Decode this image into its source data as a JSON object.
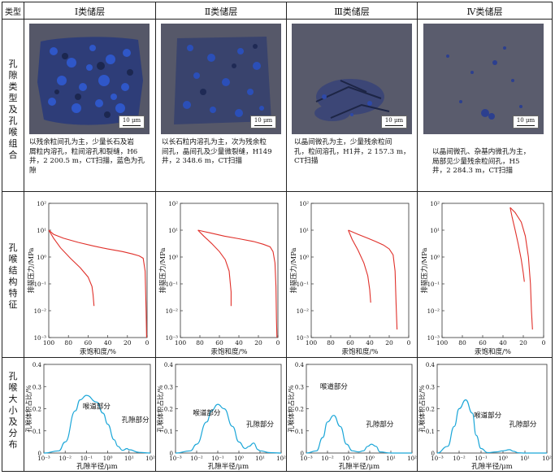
{
  "header": {
    "corner": "类型",
    "columns": [
      "Ⅰ类储层",
      "Ⅱ类储层",
      "Ⅲ类储层",
      "Ⅳ类储层"
    ]
  },
  "rows": {
    "pore_type": "孔隙类型及孔喉组合",
    "capillary": "孔喉结构特征",
    "size_dist": "孔喉大小及分布"
  },
  "scale_label": "10 μm",
  "captions": [
    [
      "以残余粒间孔为主，少量长石及岩",
      "屑粒内溶孔，粒间溶孔和裂缝，H6",
      "井，2 200.5 m，CT扫描，蓝色为孔隙"
    ],
    [
      "以长石粒内溶孔为主，次为残余粒",
      "间孔，晶间孔及少量微裂缝，H149",
      "井，2 348.6 m，CT扫描"
    ],
    [
      "以晶间微孔为主，少量残余粒间",
      "孔，粒间溶孔，H1井，2 157.3 m，",
      "CT扫描"
    ],
    [
      "以晶间微孔、杂基内微孔为主，",
      "局部见少量残余粒间孔，H5",
      "井，2 284.3 m，CT扫描"
    ]
  ],
  "capillary_axes": {
    "ylabel": "排驱压力/MPa",
    "xlabel": "汞饱和度/%",
    "yticks": [
      "10²",
      "10¹",
      "10⁰",
      "10⁻¹",
      "10⁻²",
      "10⁻³"
    ],
    "xticks": [
      "100",
      "80",
      "60",
      "40",
      "20",
      "0"
    ]
  },
  "dist_axes": {
    "ylabel": "孔喉体积占比/%",
    "xlabel": "孔隙半径/μm",
    "yticks": [
      "0.4",
      "0.3",
      "0.2",
      "0.1",
      "0"
    ],
    "xticks": [
      "10⁻³",
      "10⁻²",
      "10⁻¹",
      "10⁰",
      "10¹",
      "10²"
    ]
  },
  "dist_labels": {
    "throat": "喉道部分",
    "pore": "孔隙部分"
  },
  "chart_data": [
    {
      "type": "line",
      "panel": "Ⅰ类储层 毛管压力曲线",
      "xscale": "reversed",
      "yscale": "log",
      "xlim": [
        100,
        0
      ],
      "ylim": [
        0.001,
        100
      ],
      "series": [
        {
          "x": [
            100,
            95,
            85,
            70,
            55,
            40,
            25,
            15,
            8,
            4,
            2,
            1,
            0.5
          ],
          "y": [
            10,
            7,
            5,
            3.5,
            2.6,
            2,
            1.6,
            1.3,
            1.1,
            0.9,
            0.3,
            0.01,
            0.001
          ]
        },
        {
          "x": [
            100,
            95,
            88,
            78,
            68,
            60,
            56,
            55,
            54
          ],
          "y": [
            10,
            5,
            2.2,
            0.9,
            0.4,
            0.18,
            0.08,
            0.04,
            0.015
          ]
        }
      ]
    },
    {
      "type": "line",
      "panel": "Ⅱ类储层 毛管压力曲线",
      "xscale": "reversed",
      "yscale": "log",
      "xlim": [
        100,
        0
      ],
      "ylim": [
        0.001,
        100
      ],
      "series": [
        {
          "x": [
            82,
            70,
            55,
            40,
            25,
            15,
            8,
            5,
            3,
            2,
            1.5,
            1
          ],
          "y": [
            10,
            8,
            6,
            4.8,
            3.8,
            3,
            2.4,
            1.6,
            0.6,
            0.08,
            0.005,
            0.001
          ]
        },
        {
          "x": [
            82,
            76,
            68,
            60,
            54,
            50,
            48,
            48
          ],
          "y": [
            10,
            6,
            3.2,
            1.6,
            0.8,
            0.3,
            0.05,
            0.015
          ]
        }
      ]
    },
    {
      "type": "line",
      "panel": "Ⅲ类储层 毛管压力曲线",
      "xscale": "reversed",
      "yscale": "log",
      "xlim": [
        100,
        0
      ],
      "ylim": [
        0.001,
        100
      ],
      "series": [
        {
          "x": [
            62,
            52,
            42,
            34,
            26,
            20,
            16,
            14,
            13,
            12
          ],
          "y": [
            10,
            7,
            5,
            3.8,
            2.8,
            2,
            1.2,
            0.3,
            0.02,
            0.002
          ]
        },
        {
          "x": [
            62,
            58,
            52,
            46,
            42,
            40,
            39
          ],
          "y": [
            10,
            4.5,
            1.8,
            0.6,
            0.2,
            0.06,
            0.02
          ]
        }
      ]
    },
    {
      "type": "line",
      "panel": "Ⅳ类储层 毛管压力曲线",
      "xscale": "reversed",
      "yscale": "log",
      "xlim": [
        100,
        0
      ],
      "ylim": [
        0.001,
        100
      ],
      "series": [
        {
          "x": [
            33,
            28,
            22,
            18,
            15,
            13,
            12,
            11
          ],
          "y": [
            70,
            45,
            20,
            6,
            1,
            0.1,
            0.01,
            0.002
          ]
        },
        {
          "x": [
            33,
            31,
            28,
            25,
            22,
            20,
            19
          ],
          "y": [
            70,
            30,
            10,
            3,
            0.8,
            0.25,
            0.12
          ]
        }
      ]
    },
    {
      "type": "line",
      "panel": "Ⅰ类储层 孔喉分布",
      "xscale": "log",
      "xlim": [
        0.001,
        100
      ],
      "ylim": [
        0,
        0.4
      ],
      "series": [
        {
          "x": [
            0.001,
            0.005,
            0.01,
            0.03,
            0.05,
            0.1,
            0.3,
            0.6,
            1,
            2,
            3,
            5,
            8,
            10,
            30,
            100
          ],
          "y": [
            0,
            0.01,
            0.05,
            0.19,
            0.24,
            0.26,
            0.23,
            0.18,
            0.13,
            0.06,
            0.03,
            0.012,
            0.02,
            0.015,
            0.003,
            0
          ]
        }
      ]
    },
    {
      "type": "line",
      "panel": "Ⅱ类储层 孔喉分布",
      "xscale": "log",
      "xlim": [
        0.001,
        100
      ],
      "ylim": [
        0,
        0.4
      ],
      "series": [
        {
          "x": [
            0.001,
            0.005,
            0.01,
            0.03,
            0.05,
            0.1,
            0.2,
            0.5,
            1,
            2,
            3,
            5,
            8,
            10,
            30,
            100
          ],
          "y": [
            0,
            0.01,
            0.04,
            0.14,
            0.19,
            0.22,
            0.2,
            0.12,
            0.05,
            0.02,
            0.03,
            0.045,
            0.015,
            0.01,
            0.002,
            0
          ]
        }
      ]
    },
    {
      "type": "line",
      "panel": "Ⅲ类储层 孔喉分布",
      "xscale": "log",
      "xlim": [
        0.001,
        100
      ],
      "ylim": [
        0,
        0.4
      ],
      "series": [
        {
          "x": [
            0.001,
            0.003,
            0.006,
            0.01,
            0.02,
            0.04,
            0.08,
            0.15,
            0.3,
            0.5,
            0.8,
            1.2,
            2,
            3,
            10,
            100
          ],
          "y": [
            0,
            0.01,
            0.07,
            0.14,
            0.17,
            0.12,
            0.04,
            0.01,
            0.005,
            0.01,
            0.03,
            0.04,
            0.03,
            0.005,
            0,
            0
          ]
        }
      ]
    },
    {
      "type": "line",
      "panel": "Ⅳ类储层 孔喉分布",
      "xscale": "log",
      "xlim": [
        0.001,
        100
      ],
      "ylim": [
        0,
        0.4
      ],
      "series": [
        {
          "x": [
            0.001,
            0.003,
            0.006,
            0.01,
            0.02,
            0.04,
            0.06,
            0.1,
            0.2,
            0.5,
            1,
            2,
            3,
            5,
            10,
            100
          ],
          "y": [
            0,
            0.03,
            0.12,
            0.2,
            0.24,
            0.18,
            0.08,
            0.02,
            0.002,
            0.005,
            0.01,
            0.015,
            0.008,
            0.001,
            0,
            0
          ]
        }
      ]
    }
  ]
}
